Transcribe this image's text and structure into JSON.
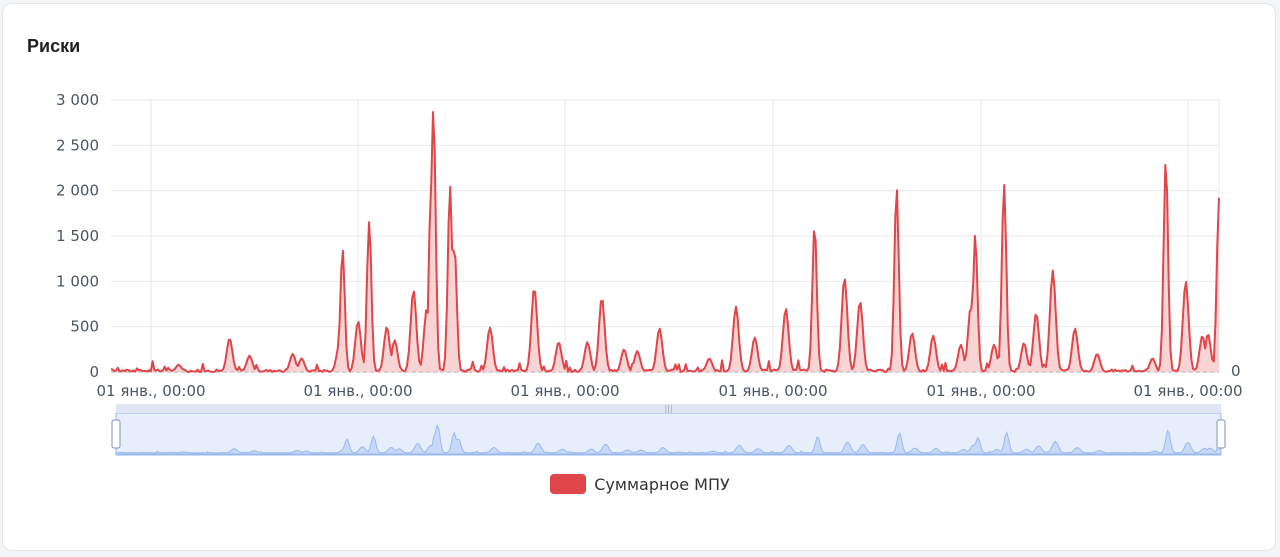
{
  "card": {
    "title": "Риски"
  },
  "colors": {
    "series": "#e0454a",
    "series_fill": "#f5c5c6",
    "grid": "#e4e8ef",
    "zoom_bg": "#e6edfb",
    "zoom_stroke": "#9bb8ec",
    "zoom_fill": "#c8d8f7"
  },
  "chart_data": {
    "type": "area",
    "y_ticks": [
      "0",
      "500",
      "1 000",
      "1 500",
      "2 000",
      "2 500",
      "3 000"
    ],
    "ylim": [
      0,
      3000
    ],
    "x_ticks": [
      "01 янв., 00:00",
      "01 янв., 00:00",
      "01 янв., 00:00",
      "01 янв., 00:00",
      "01 янв., 00:00",
      "01 янв., 00:00"
    ],
    "right_axis_label": "0",
    "grid": true,
    "legend_position": "bottom-center",
    "series": [
      {
        "name": "Суммарное МПУ",
        "peaks": [
          [
            0.061,
            80
          ],
          [
            0.107,
            370
          ],
          [
            0.125,
            180
          ],
          [
            0.164,
            200
          ],
          [
            0.172,
            150
          ],
          [
            0.206,
            300
          ],
          [
            0.209,
            1360
          ],
          [
            0.223,
            560
          ],
          [
            0.233,
            1660
          ],
          [
            0.249,
            500
          ],
          [
            0.256,
            350
          ],
          [
            0.273,
            900
          ],
          [
            0.285,
            700
          ],
          [
            0.289,
            2100
          ],
          [
            0.291,
            2920
          ],
          [
            0.306,
            2060
          ],
          [
            0.31,
            1400
          ],
          [
            0.342,
            490
          ],
          [
            0.382,
            930
          ],
          [
            0.404,
            330
          ],
          [
            0.43,
            330
          ],
          [
            0.443,
            820
          ],
          [
            0.463,
            250
          ],
          [
            0.475,
            230
          ],
          [
            0.495,
            480
          ],
          [
            0.54,
            150
          ],
          [
            0.564,
            720
          ],
          [
            0.581,
            380
          ],
          [
            0.609,
            700
          ],
          [
            0.635,
            1630
          ],
          [
            0.662,
            1040
          ],
          [
            0.676,
            780
          ],
          [
            0.709,
            2040
          ],
          [
            0.723,
            430
          ],
          [
            0.742,
            400
          ],
          [
            0.767,
            300
          ],
          [
            0.776,
            720
          ],
          [
            0.78,
            1520
          ],
          [
            0.797,
            300
          ],
          [
            0.806,
            2080
          ],
          [
            0.824,
            320
          ],
          [
            0.835,
            650
          ],
          [
            0.85,
            1120
          ],
          [
            0.87,
            480
          ],
          [
            0.89,
            200
          ],
          [
            0.94,
            150
          ],
          [
            0.952,
            2340
          ],
          [
            0.97,
            1000
          ],
          [
            0.985,
            400
          ],
          [
            0.99,
            420
          ],
          [
            1.0,
            1920
          ]
        ]
      }
    ]
  }
}
